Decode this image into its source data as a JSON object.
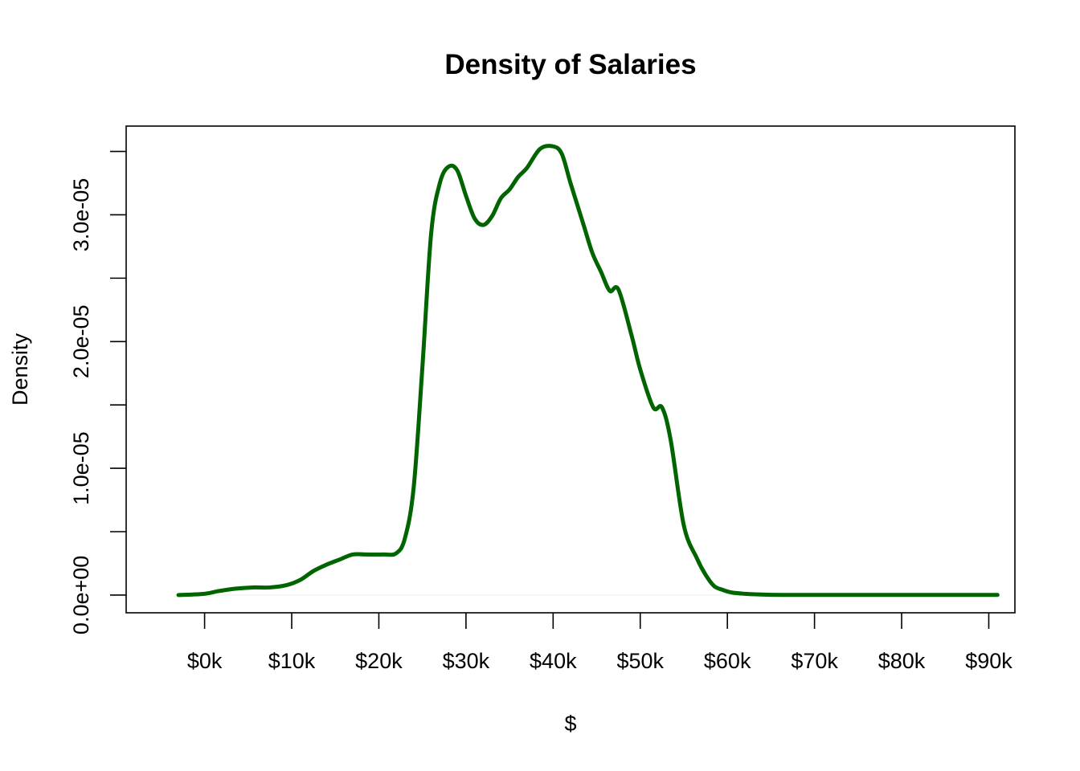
{
  "chart_data": {
    "type": "line",
    "title": "Density of Salaries",
    "xlabel": "$",
    "ylabel": "Density",
    "xlim": [
      -9000,
      93000
    ],
    "ylim": [
      -1.4e-06,
      3.7e-05
    ],
    "x_ticks": [
      0,
      10000,
      20000,
      30000,
      40000,
      50000,
      60000,
      70000,
      80000,
      90000
    ],
    "x_tick_labels": [
      "$0k",
      "$10k",
      "$20k",
      "$30k",
      "$40k",
      "$50k",
      "$60k",
      "$70k",
      "$80k",
      "$90k"
    ],
    "y_ticks": [
      0,
      5e-06,
      1e-05,
      1.5e-05,
      2e-05,
      2.5e-05,
      3e-05,
      3.5e-05
    ],
    "y_tick_labels": [
      "0.0e+00",
      "",
      "1.0e-05",
      "",
      "2.0e-05",
      "",
      "3.0e-05",
      ""
    ],
    "grid": false,
    "legend": "none",
    "series": [
      {
        "color": "#006400",
        "x": [
          -3000,
          0,
          1500,
          3500,
          5500,
          7500,
          9500,
          11000,
          12500,
          14000,
          15500,
          17000,
          18500,
          20500,
          22000,
          23000,
          24000,
          25000,
          26000,
          27000,
          28000,
          29000,
          30000,
          31000,
          32000,
          33000,
          34000,
          35000,
          36000,
          37000,
          38500,
          40000,
          41000,
          42000,
          43500,
          44500,
          45500,
          46500,
          47500,
          49000,
          50000,
          51500,
          52500,
          53500,
          55000,
          56500,
          57500,
          58500,
          59500,
          60500,
          62000,
          63500,
          65000,
          67000,
          69000,
          72000,
          76000,
          80000,
          84000,
          88000,
          91000
        ],
        "y": [
          0,
          1e-07,
          3e-07,
          5e-07,
          6e-07,
          6e-07,
          8e-07,
          1.2e-06,
          1.9e-06,
          2.4e-06,
          2.8e-06,
          3.2e-06,
          3.2e-06,
          3.2e-06,
          3.3e-06,
          4.5e-06,
          8.5e-06,
          1.8e-05,
          2.85e-05,
          3.25e-05,
          3.38e-05,
          3.35e-05,
          3.15e-05,
          2.97e-05,
          2.92e-05,
          2.99e-05,
          3.13e-05,
          3.2e-05,
          3.3e-05,
          3.37e-05,
          3.52e-05,
          3.54e-05,
          3.48e-05,
          3.25e-05,
          2.92e-05,
          2.7e-05,
          2.55e-05,
          2.4e-05,
          2.41e-05,
          2.05e-05,
          1.78e-05,
          1.48e-05,
          1.48e-05,
          1.22e-05,
          5.5e-06,
          2.9e-06,
          1.6e-06,
          7e-07,
          4e-07,
          2e-07,
          1e-07,
          5e-08,
          2e-08,
          1e-08,
          1e-08,
          1e-08,
          1e-08,
          1e-08,
          1e-08,
          1e-08,
          1e-08
        ]
      }
    ]
  }
}
